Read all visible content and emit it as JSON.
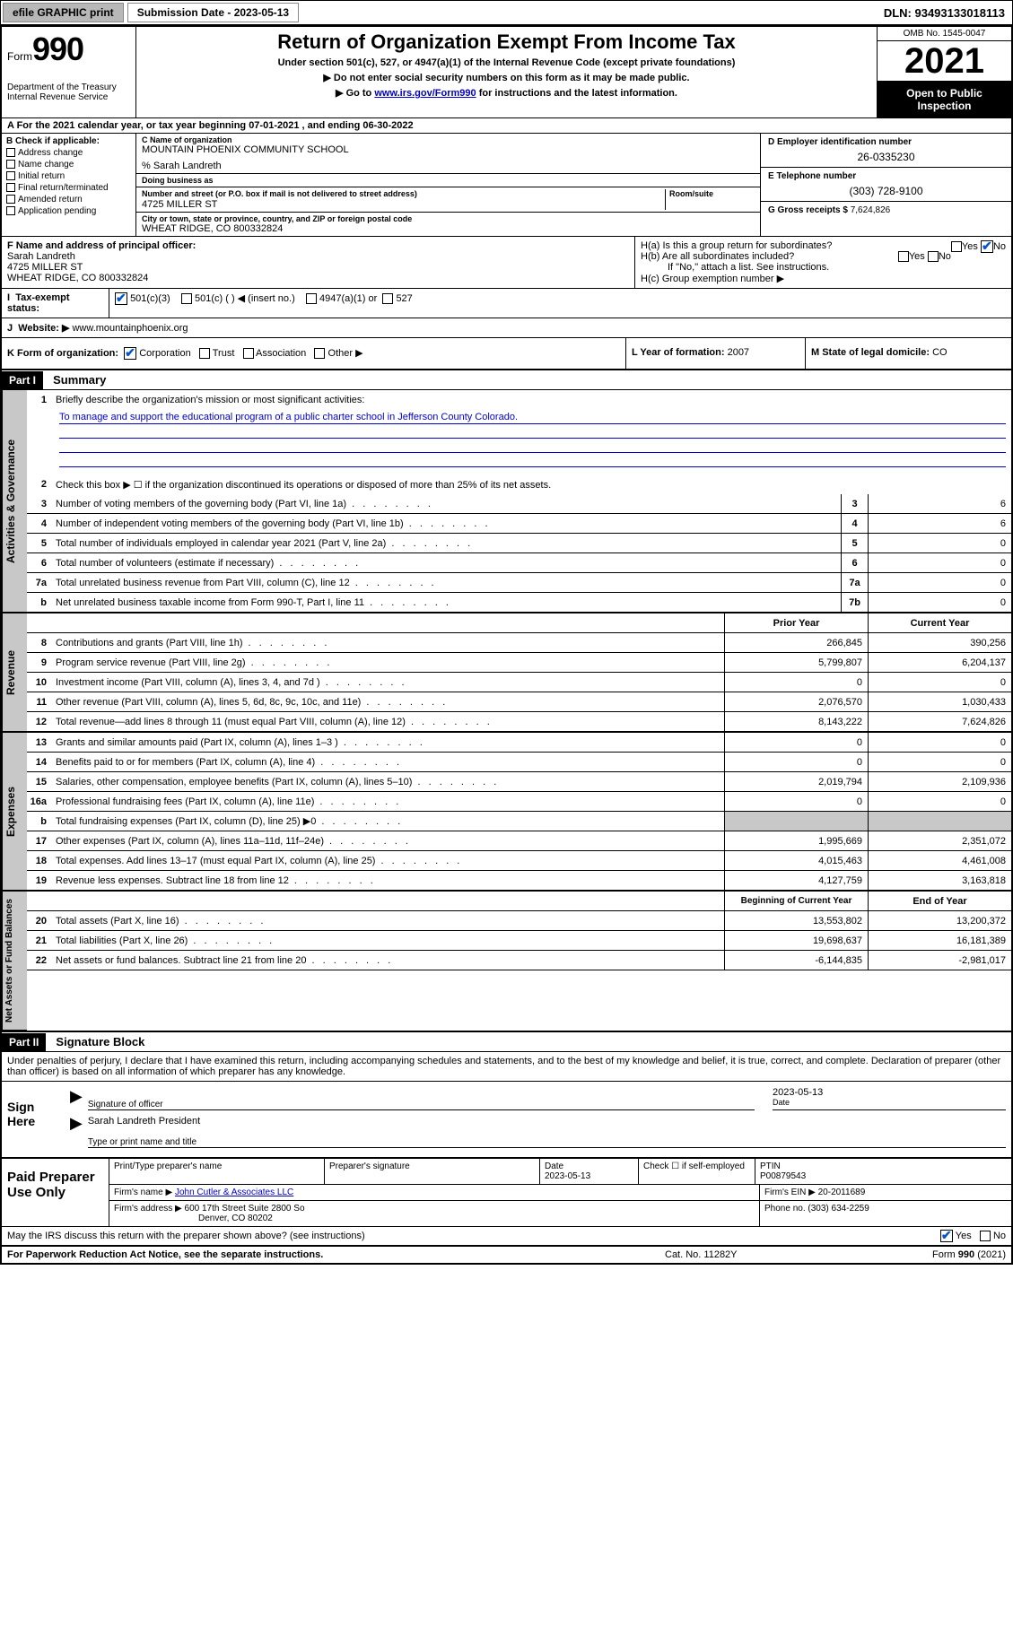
{
  "topbar": {
    "efile": "efile GRAPHIC print",
    "submission": "Submission Date - 2023-05-13",
    "dln": "DLN: 93493133018113"
  },
  "header": {
    "form_prefix": "Form",
    "form_number": "990",
    "title": "Return of Organization Exempt From Income Tax",
    "subtitle": "Under section 501(c), 527, or 4947(a)(1) of the Internal Revenue Code (except private foundations)",
    "note1": "▶ Do not enter social security numbers on this form as it may be made public.",
    "note2_pre": "▶ Go to ",
    "note2_link": "www.irs.gov/Form990",
    "note2_post": " for instructions and the latest information.",
    "dept": "Department of the Treasury\nInternal Revenue Service",
    "omb": "OMB No. 1545-0047",
    "year": "2021",
    "open_public": "Open to Public Inspection"
  },
  "calrow": "A For the 2021 calendar year, or tax year beginning 07-01-2021   , and ending 06-30-2022",
  "boxB": {
    "label": "B Check if applicable:",
    "items": [
      "Address change",
      "Name change",
      "Initial return",
      "Final return/terminated",
      "Amended return",
      "Application pending"
    ]
  },
  "boxC": {
    "name_lbl": "C Name of organization",
    "name": "MOUNTAIN PHOENIX COMMUNITY SCHOOL",
    "care_of": "% Sarah Landreth",
    "dba_lbl": "Doing business as",
    "addr_lbl": "Number and street (or P.O. box if mail is not delivered to street address)",
    "room_lbl": "Room/suite",
    "addr": "4725 MILLER ST",
    "city_lbl": "City or town, state or province, country, and ZIP or foreign postal code",
    "city": "WHEAT RIDGE, CO  800332824"
  },
  "boxD": {
    "ein_lbl": "D Employer identification number",
    "ein": "26-0335230",
    "phone_lbl": "E Telephone number",
    "phone": "(303) 728-9100",
    "gross_lbl": "G Gross receipts $",
    "gross": "7,624,826"
  },
  "boxF": {
    "lbl": "F  Name and address of principal officer:",
    "name": "Sarah Landreth",
    "addr1": "4725 MILLER ST",
    "addr2": "WHEAT RIDGE, CO  800332824"
  },
  "boxH": {
    "ha": "H(a)  Is this a group return for subordinates?",
    "hb": "H(b)  Are all subordinates included?",
    "hb_note": "If \"No,\" attach a list. See instructions.",
    "hc": "H(c)  Group exemption number ▶",
    "yes": "Yes",
    "no": "No"
  },
  "boxI": {
    "lbl": "Tax-exempt status:",
    "opt1": "501(c)(3)",
    "opt2": "501(c) (  ) ◀ (insert no.)",
    "opt3": "4947(a)(1) or",
    "opt4": "527"
  },
  "boxJ": {
    "lbl": "Website: ▶",
    "val": "www.mountainphoenix.org"
  },
  "boxK": {
    "lbl": "K Form of organization:",
    "opts": [
      "Corporation",
      "Trust",
      "Association",
      "Other ▶"
    ]
  },
  "boxL": {
    "lbl": "L Year of formation:",
    "val": "2007"
  },
  "boxM": {
    "lbl": "M State of legal domicile:",
    "val": "CO"
  },
  "part1": {
    "hdr": "Part I",
    "title": "Summary",
    "q1": "Briefly describe the organization's mission or most significant activities:",
    "mission": "To manage and support the educational program of a public charter school in Jefferson County Colorado.",
    "q2": "Check this box ▶ ☐  if the organization discontinued its operations or disposed of more than 25% of its net assets.",
    "rows_gov": [
      {
        "n": "3",
        "t": "Number of voting members of the governing body (Part VI, line 1a)",
        "box": "3",
        "v": "6"
      },
      {
        "n": "4",
        "t": "Number of independent voting members of the governing body (Part VI, line 1b)",
        "box": "4",
        "v": "6"
      },
      {
        "n": "5",
        "t": "Total number of individuals employed in calendar year 2021 (Part V, line 2a)",
        "box": "5",
        "v": "0"
      },
      {
        "n": "6",
        "t": "Total number of volunteers (estimate if necessary)",
        "box": "6",
        "v": "0"
      },
      {
        "n": "7a",
        "t": "Total unrelated business revenue from Part VIII, column (C), line 12",
        "box": "7a",
        "v": "0"
      },
      {
        "n": "b",
        "t": "Net unrelated business taxable income from Form 990-T, Part I, line 11",
        "box": "7b",
        "v": "0"
      }
    ],
    "col_prior": "Prior Year",
    "col_current": "Current Year",
    "rows_rev": [
      {
        "n": "8",
        "t": "Contributions and grants (Part VIII, line 1h)",
        "p": "266,845",
        "c": "390,256"
      },
      {
        "n": "9",
        "t": "Program service revenue (Part VIII, line 2g)",
        "p": "5,799,807",
        "c": "6,204,137"
      },
      {
        "n": "10",
        "t": "Investment income (Part VIII, column (A), lines 3, 4, and 7d )",
        "p": "0",
        "c": "0"
      },
      {
        "n": "11",
        "t": "Other revenue (Part VIII, column (A), lines 5, 6d, 8c, 9c, 10c, and 11e)",
        "p": "2,076,570",
        "c": "1,030,433"
      },
      {
        "n": "12",
        "t": "Total revenue—add lines 8 through 11 (must equal Part VIII, column (A), line 12)",
        "p": "8,143,222",
        "c": "7,624,826"
      }
    ],
    "rows_exp": [
      {
        "n": "13",
        "t": "Grants and similar amounts paid (Part IX, column (A), lines 1–3 )",
        "p": "0",
        "c": "0"
      },
      {
        "n": "14",
        "t": "Benefits paid to or for members (Part IX, column (A), line 4)",
        "p": "0",
        "c": "0"
      },
      {
        "n": "15",
        "t": "Salaries, other compensation, employee benefits (Part IX, column (A), lines 5–10)",
        "p": "2,019,794",
        "c": "2,109,936"
      },
      {
        "n": "16a",
        "t": "Professional fundraising fees (Part IX, column (A), line 11e)",
        "p": "0",
        "c": "0"
      },
      {
        "n": "b",
        "t": "Total fundraising expenses (Part IX, column (D), line 25) ▶0",
        "p": "",
        "c": "",
        "shaded": true
      },
      {
        "n": "17",
        "t": "Other expenses (Part IX, column (A), lines 11a–11d, 11f–24e)",
        "p": "1,995,669",
        "c": "2,351,072"
      },
      {
        "n": "18",
        "t": "Total expenses. Add lines 13–17 (must equal Part IX, column (A), line 25)",
        "p": "4,015,463",
        "c": "4,461,008"
      },
      {
        "n": "19",
        "t": "Revenue less expenses. Subtract line 18 from line 12",
        "p": "4,127,759",
        "c": "3,163,818"
      }
    ],
    "col_begin": "Beginning of Current Year",
    "col_end": "End of Year",
    "rows_net": [
      {
        "n": "20",
        "t": "Total assets (Part X, line 16)",
        "p": "13,553,802",
        "c": "13,200,372"
      },
      {
        "n": "21",
        "t": "Total liabilities (Part X, line 26)",
        "p": "19,698,637",
        "c": "16,181,389"
      },
      {
        "n": "22",
        "t": "Net assets or fund balances. Subtract line 21 from line 20",
        "p": "-6,144,835",
        "c": "-2,981,017"
      }
    ],
    "side_gov": "Activities & Governance",
    "side_rev": "Revenue",
    "side_exp": "Expenses",
    "side_net": "Net Assets or Fund Balances"
  },
  "part2": {
    "hdr": "Part II",
    "title": "Signature Block",
    "intro": "Under penalties of perjury, I declare that I have examined this return, including accompanying schedules and statements, and to the best of my knowledge and belief, it is true, correct, and complete. Declaration of preparer (other than officer) is based on all information of which preparer has any knowledge.",
    "sign_here": "Sign Here",
    "sig_officer": "Signature of officer",
    "sig_date_val": "2023-05-13",
    "sig_date_lbl": "Date",
    "sig_name": "Sarah Landreth President",
    "sig_name_lbl": "Type or print name and title",
    "paid": "Paid Preparer Use Only",
    "prep_name_lbl": "Print/Type preparer's name",
    "prep_sig_lbl": "Preparer's signature",
    "prep_date_lbl": "Date",
    "prep_date": "2023-05-13",
    "prep_self": "Check ☐ if self-employed",
    "ptin_lbl": "PTIN",
    "ptin": "P00879543",
    "firm_name_lbl": "Firm's name    ▶",
    "firm_name": "John Cutler & Associates LLC",
    "firm_ein_lbl": "Firm's EIN ▶",
    "firm_ein": "20-2011689",
    "firm_addr_lbl": "Firm's address ▶",
    "firm_addr1": "600 17th Street Suite 2800 So",
    "firm_addr2": "Denver, CO  80202",
    "firm_phone_lbl": "Phone no.",
    "firm_phone": "(303) 634-2259",
    "may_irs": "May the IRS discuss this return with the preparer shown above? (see instructions)"
  },
  "footer": {
    "left": "For Paperwork Reduction Act Notice, see the separate instructions.",
    "mid": "Cat. No. 11282Y",
    "right_pre": "Form ",
    "right_form": "990",
    "right_post": " (2021)"
  },
  "colors": {
    "black": "#000000",
    "white": "#ffffff",
    "gray_btn": "#b8b8b8",
    "gray_shade": "#c8c8c8",
    "link": "#0000cc",
    "check": "#0055cc"
  }
}
